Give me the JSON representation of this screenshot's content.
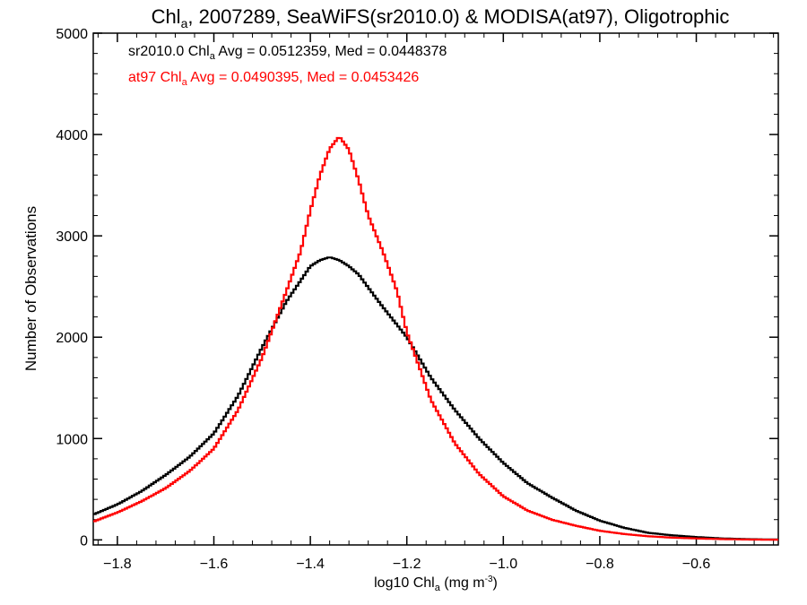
{
  "chart_data": {
    "type": "line",
    "step": true,
    "title": "Chl_a, 2007289, SeaWiFS(sr2010.0) & MODISA(at97), Oligotrophic",
    "title_parts": {
      "main": "Chl",
      "sub": "a",
      "rest": ", 2007289, SeaWiFS(sr2010.0) & MODISA(at97), Oligotrophic"
    },
    "xlabel": "log10 Chl_a (mg m^-3)",
    "xlabel_parts": {
      "pre": "log10 Chl",
      "sub": "a",
      "mid": " (mg m",
      "sup": "-3",
      "post": ")"
    },
    "ylabel": "Number of Observations",
    "xlim": [
      -1.85,
      -0.43
    ],
    "ylim": [
      -50,
      5000
    ],
    "xticks": [
      -1.8,
      -1.6,
      -1.4,
      -1.2,
      -1.0,
      -0.8,
      -0.6
    ],
    "xtick_labels": [
      "−1.8",
      "−1.6",
      "−1.4",
      "−1.2",
      "−1.0",
      "−0.8",
      "−0.6"
    ],
    "yticks": [
      0,
      1000,
      2000,
      3000,
      4000,
      5000
    ],
    "ytick_labels": [
      "0",
      "1000",
      "2000",
      "3000",
      "4000",
      "5000"
    ],
    "legend_placement": "top-left",
    "annotations": [
      {
        "text": "sr2010.0 Chl_a Avg = 0.0512359, Med = 0.0448378",
        "pre": "sr2010.0 Chl",
        "sub": "a",
        "post": " Avg = 0.0512359, Med = 0.0448378",
        "color": "#000000"
      },
      {
        "text": "at97 Chl_a Avg = 0.0490395, Med = 0.0453426",
        "pre": "at97 Chl",
        "sub": "a",
        "post": " Avg = 0.0490395, Med = 0.0453426",
        "color": "#ff0000"
      }
    ],
    "series": [
      {
        "color": "#000000",
        "x": [
          -1.85,
          -1.8,
          -1.75,
          -1.7,
          -1.65,
          -1.6,
          -1.55,
          -1.5,
          -1.45,
          -1.4,
          -1.38,
          -1.36,
          -1.34,
          -1.32,
          -1.3,
          -1.28,
          -1.25,
          -1.2,
          -1.15,
          -1.1,
          -1.05,
          -1.0,
          -0.95,
          -0.9,
          -0.85,
          -0.8,
          -0.75,
          -0.7,
          -0.65,
          -0.6,
          -0.55,
          -0.5,
          -0.45
        ],
        "y": [
          250,
          350,
          480,
          640,
          820,
          1050,
          1420,
          1900,
          2350,
          2700,
          2760,
          2790,
          2760,
          2700,
          2620,
          2490,
          2300,
          2000,
          1600,
          1280,
          1000,
          760,
          560,
          420,
          290,
          190,
          120,
          70,
          45,
          28,
          15,
          8,
          4
        ]
      },
      {
        "color": "#ff0000",
        "x": [
          -1.85,
          -1.8,
          -1.75,
          -1.7,
          -1.65,
          -1.6,
          -1.55,
          -1.5,
          -1.45,
          -1.42,
          -1.4,
          -1.38,
          -1.36,
          -1.34,
          -1.32,
          -1.3,
          -1.28,
          -1.25,
          -1.22,
          -1.2,
          -1.17,
          -1.15,
          -1.1,
          -1.05,
          -1.0,
          -0.95,
          -0.9,
          -0.85,
          -0.8,
          -0.75,
          -0.7,
          -0.65,
          -0.6,
          -0.55,
          -0.5,
          -0.45
        ],
        "y": [
          180,
          270,
          380,
          510,
          680,
          900,
          1280,
          1800,
          2450,
          2850,
          3250,
          3600,
          3860,
          3980,
          3850,
          3550,
          3200,
          2850,
          2450,
          2050,
          1650,
          1380,
          950,
          650,
          430,
          290,
          200,
          140,
          90,
          58,
          36,
          22,
          14,
          8,
          4,
          2
        ]
      }
    ]
  }
}
